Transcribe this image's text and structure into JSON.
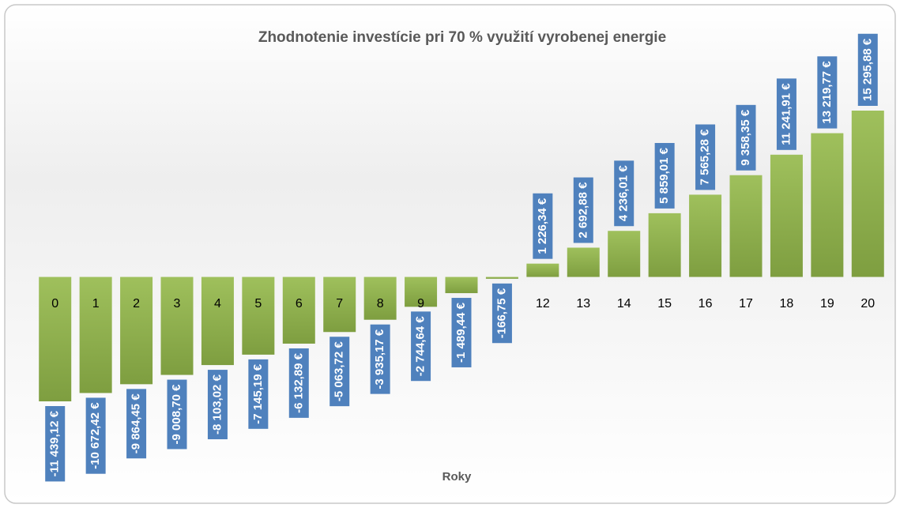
{
  "chart_data": {
    "type": "bar",
    "title": "Zhodnotenie investície pri 70 % využití vyrobenej energie",
    "x_label": "Roky",
    "categories": [
      "0",
      "1",
      "2",
      "3",
      "4",
      "5",
      "6",
      "7",
      "8",
      "9",
      "10",
      "11",
      "12",
      "13",
      "14",
      "15",
      "16",
      "17",
      "18",
      "19",
      "20"
    ],
    "values": [
      -11439.12,
      -10672.42,
      -9864.45,
      -9008.7,
      -8103.02,
      -7145.19,
      -6132.89,
      -5063.72,
      -3935.17,
      -2744.64,
      -1489.44,
      -166.75,
      1226.34,
      2692.88,
      4236.01,
      5859.01,
      7565.28,
      9358.35,
      11241.91,
      13219.77,
      15295.88
    ],
    "value_labels": [
      "-11 439,12 €",
      "-10 672,42 €",
      "-9 864,45 €",
      "-9 008,70 €",
      "-8 103,02 €",
      "-7 145,19 €",
      "-6 132,89 €",
      "-5 063,72 €",
      "-3 935,17 €",
      "-2 744,64 €",
      "-1 489,44 €",
      "-166,75 €",
      "1 226,34 €",
      "2 692,88 €",
      "4 236,01 €",
      "5 859,01 €",
      "7 565,28 €",
      "9 358,35 €",
      "11 241,91 €",
      "13 219,77 €",
      "15 295,88 €"
    ],
    "color": "#8fb050",
    "label_color": "#4f81bd"
  }
}
